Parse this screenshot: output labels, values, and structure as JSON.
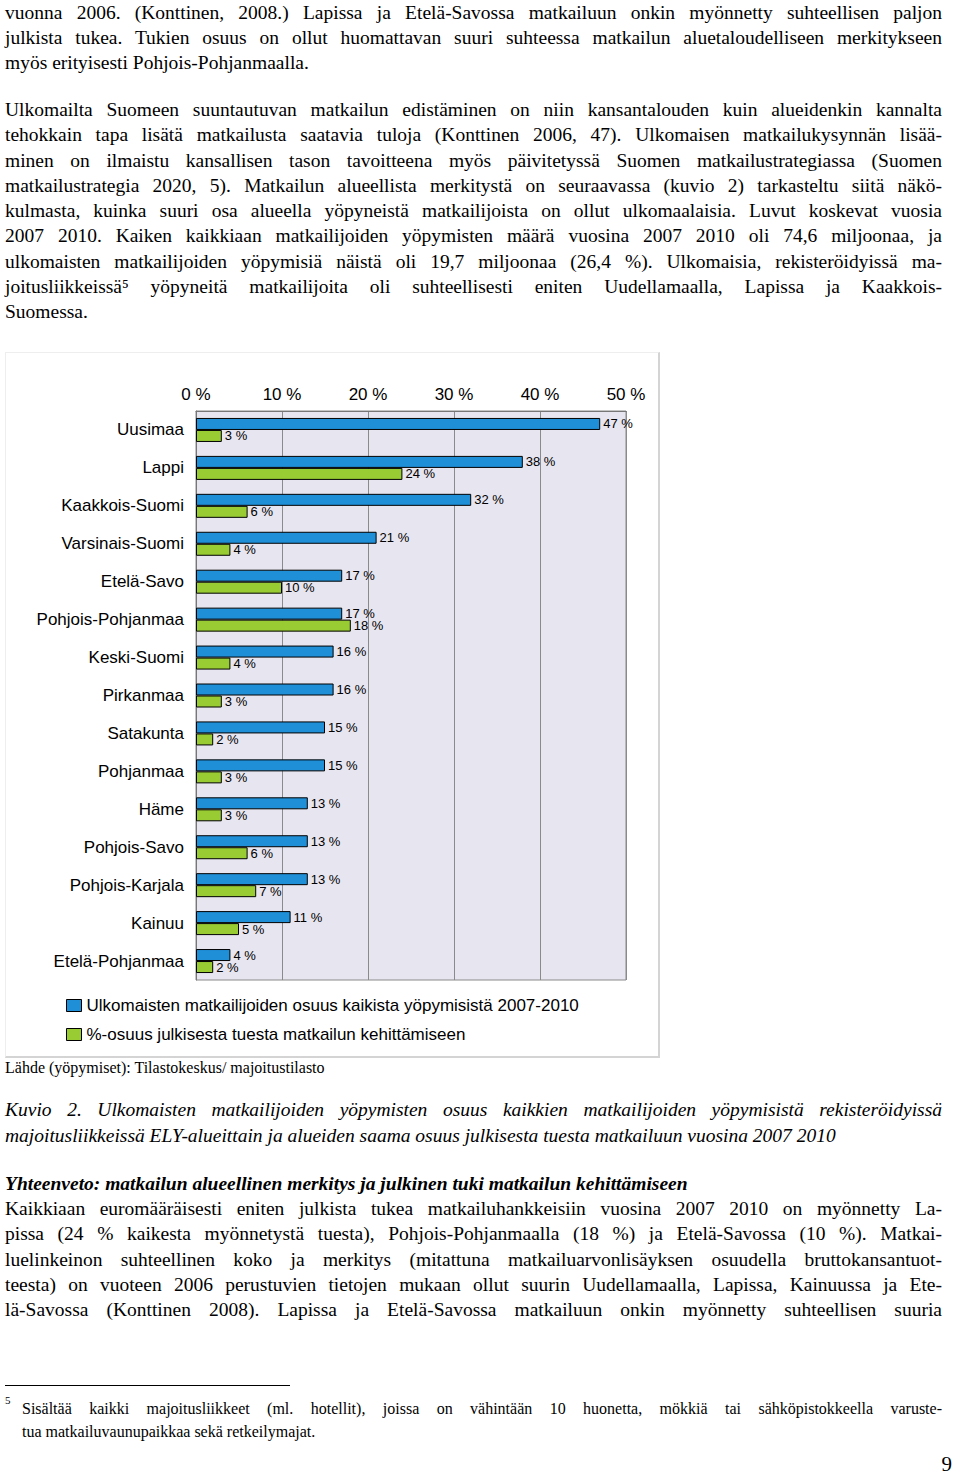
{
  "page": {
    "paragraphs": [
      [
        "vuonna 2006. (Konttinen, 2008.) Lapissa ja Etelä-Savossa matkailuun onkin myönnetty suhteellisen paljon",
        "julkista tukea. Tukien osuus on ollut huomattavan suuri suhteessa matkailun aluetaloudelliseen merkitykseen",
        "myös erityisesti Pohjois-Pohjanmaalla."
      ],
      [
        "Ulkomailta Suomeen suuntautuvan matkailun edistäminen on niin kansantalouden kuin alueidenkin kannalta",
        "tehokkain tapa lisätä matkailusta saatavia tuloja (Konttinen 2006, 47). Ulkomaisen matkailukysynnän lisää-",
        "minen on ilmaistu kansallisen tason tavoitteena myös päivitetyssä Suomen matkailustrategiassa (Suomen",
        "matkailustrategia 2020, 5). Matkailun alueellista merkitystä on seuraavassa (kuvio 2) tarkasteltu siitä näkö-",
        "kulmasta, kuinka suuri osa alueella yöpyneistä matkailijoista on ollut ulkomaalaisia. Luvut koskevat vuosia",
        "2007 2010. Kaiken kaikkiaan matkailijoiden yöpymisten määrä vuosina 2007 2010 oli 74,6 miljoonaa, ja",
        "ulkomaisten matkailijoiden yöpymisiä näistä oli 19,7 miljoonaa (26,4 %). Ulkomaisia, rekisteröidyissä ma-",
        "joitusliikkeissä⁵ yöpyneitä matkailijoita oli suhteellisesti eniten Uudellamaalla, Lapissa ja Kaakkois-",
        "Suomessa."
      ]
    ],
    "source": "Lähde (yöpymiset): Tilastokeskus/ majoitustilasto",
    "caption": [
      "Kuvio 2. Ulkomaisten matkailijoiden yöpymisten osuus kaikkien matkailijoiden yöpymisistä rekisteröidyissä",
      "majoitusliikkeissä ELY-alueittain ja alueiden saama osuus julkisesta tuesta matkailuun vuosina 2007 2010"
    ],
    "summary": {
      "heading": "Yhteenveto: matkailun alueellinen merkitys ja julkinen tuki matkailun kehittämiseen",
      "lines": [
        "Kaikkiaan euromääräisesti eniten julkista tukea matkailuhankkeisiin vuosina 2007 2010 on myönnetty La-",
        "pissa (24 % kaikesta myönnetystä tuesta), Pohjois-Pohjanmaalla (18 %) ja Etelä-Savossa (10 %). Matkai-",
        "luelinkeinon suhteellinen koko ja merkitys (mitattuna matkailuarvonlisäyksen osuudella bruttokansantuot-",
        "teesta) on vuoteen 2006 perustuvien tietojen mukaan ollut suurin Uudellamaalla, Lapissa, Kainuussa ja Ete-",
        "lä-Savossa (Konttinen 2008). Lapissa ja Etelä-Savossa matkailuun onkin myönnetty suhteellisen suuria"
      ]
    },
    "footnote": {
      "marker": "5",
      "lines": [
        "Sisältää kaikki majoitusliikkeet (ml. hotellit), joissa on vähintään 10 huonetta, mökkiä tai sähköpistokkeella varuste-",
        "tua matkailuvaunupaikkaa sekä retkeilymajat."
      ]
    },
    "page_number": "9"
  },
  "chart_data": {
    "type": "bar",
    "orientation": "horizontal",
    "categories": [
      "Uusimaa",
      "Lappi",
      "Kaakkois-Suomi",
      "Varsinais-Suomi",
      "Etelä-Savo",
      "Pohjois-Pohjanmaa",
      "Keski-Suomi",
      "Pirkanmaa",
      "Satakunta",
      "Pohjanmaa",
      "Häme",
      "Pohjois-Savo",
      "Pohjois-Karjala",
      "Kainuu",
      "Etelä-Pohjanmaa"
    ],
    "series": [
      {
        "name": "Ulkomaisten matkailijoiden osuus kaikista yöpymisistä 2007-2010",
        "color": "#1f8fd8",
        "values": [
          47,
          38,
          32,
          21,
          17,
          17,
          16,
          16,
          15,
          15,
          13,
          13,
          13,
          11,
          4
        ],
        "value_labels": [
          "47 %",
          "38 %",
          "32 %",
          "21 %",
          "17 %",
          "17 %",
          "16 %",
          "16 %",
          "15 %",
          "15 %",
          "13 %",
          "13 %",
          "13 %",
          "11 %",
          "4 %"
        ]
      },
      {
        "name": "%-osuus julkisesta tuesta matkailun kehittämiseen",
        "color": "#99cc33",
        "values": [
          3,
          24,
          6,
          4,
          10,
          18,
          4,
          3,
          2,
          3,
          3,
          6,
          7,
          5,
          2
        ],
        "value_labels": [
          "3 %",
          "24 %",
          "6 %",
          "4 %",
          "10 %",
          "18 %",
          "4 %",
          "3 %",
          "2 %",
          "3 %",
          "3 %",
          "6 %",
          "7 %",
          "5 %",
          "2 %"
        ]
      }
    ],
    "xlim": [
      0,
      50
    ],
    "xticks": [
      {
        "value": 0,
        "label": "0 %"
      },
      {
        "value": 10,
        "label": "10 %"
      },
      {
        "value": 20,
        "label": "20 %"
      },
      {
        "value": 30,
        "label": "30 %"
      },
      {
        "value": 40,
        "label": "40 %"
      },
      {
        "value": 50,
        "label": "50 %"
      }
    ],
    "grid": true,
    "legend": "bottom",
    "data_labels": true
  }
}
